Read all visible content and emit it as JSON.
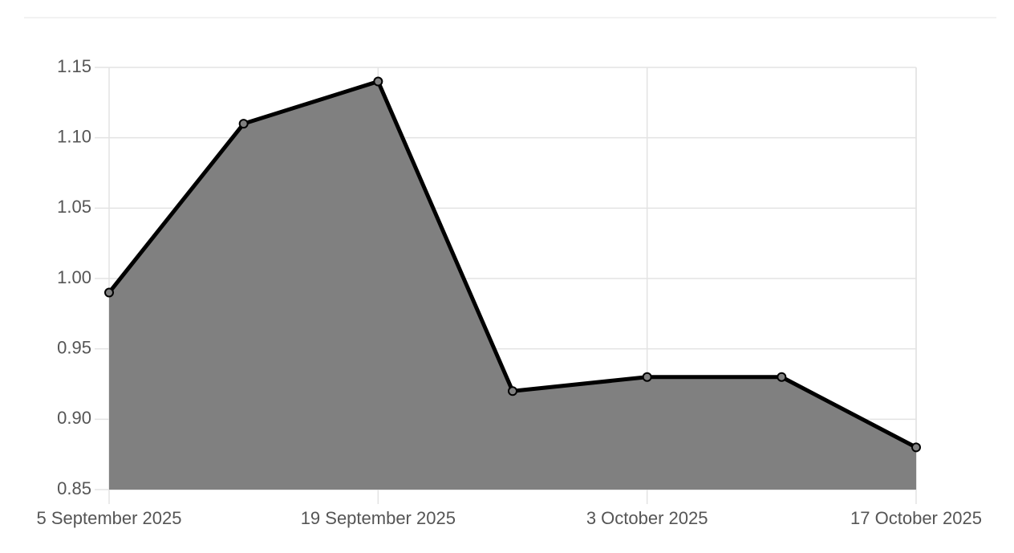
{
  "chart_data": {
    "type": "area",
    "categories": [
      "5 September 2025",
      null,
      "19 September 2025",
      null,
      "3 October 2025",
      null,
      "17 October 2025"
    ],
    "values": [
      0.99,
      1.11,
      1.14,
      0.92,
      0.93,
      0.93,
      0.88
    ],
    "color": "#000000",
    "fill_color": "#808080",
    "ylim": [
      0.85,
      1.15
    ],
    "yticks": [
      0.85,
      {
        "value": 0.9,
        "label": "0.90"
      },
      0.95,
      {
        "value": 1.0,
        "label": "1.00"
      },
      1.05,
      {
        "value": 1.1,
        "label": "1.10"
      },
      1.15
    ],
    "grid": true
  }
}
